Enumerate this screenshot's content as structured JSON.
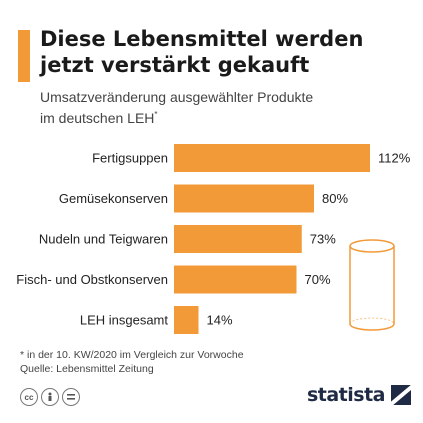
{
  "header": {
    "title_line1": "Diese Lebensmittel werden",
    "title_line2": "jetzt verstärkt gekauft",
    "subtitle_line1": "Umsatzveränderung ausgewählter Produkte",
    "subtitle_line2": "im deutschen LEH",
    "subtitle_marker": "*"
  },
  "chart_data": {
    "type": "bar",
    "orientation": "horizontal",
    "categories": [
      "Fertigsuppen",
      "Gemüsekonserven",
      "Nudeln und Teigwaren",
      "Fisch- und Obstkonserven",
      "LEH insgesamt"
    ],
    "values": [
      112,
      80,
      73,
      70,
      14
    ],
    "value_labels": [
      "112%",
      "80%",
      "73%",
      "70%",
      "14%"
    ],
    "unit": "%",
    "bar_color": "#f29a38",
    "xlim": [
      0,
      112
    ],
    "grid": false,
    "legend": "none"
  },
  "footer": {
    "footnote": "* in der 10. KW/2020 im Vergleich zur Vorwoche",
    "source": "Quelle: Lebensmittel Zeitung",
    "brand": "statista",
    "license_icons": [
      "cc-icon",
      "by-icon",
      "nd-icon"
    ]
  },
  "colors": {
    "accent": "#f29a38",
    "brand": "#1f2a44"
  }
}
